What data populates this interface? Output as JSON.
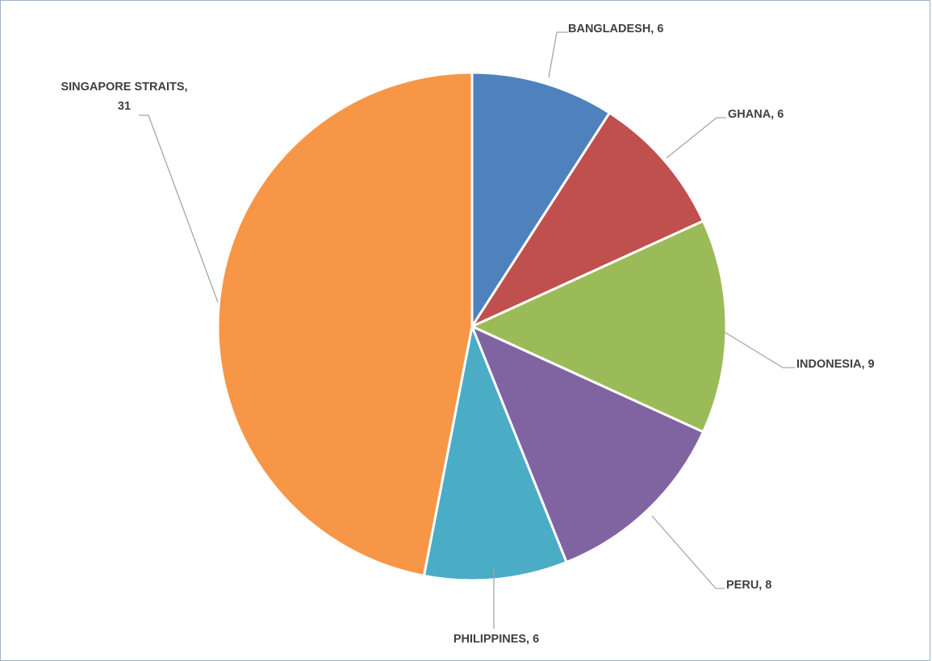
{
  "chart_data": {
    "type": "pie",
    "start_angle_deg": 0,
    "direction": "clockwise",
    "slices": [
      {
        "label": "BANGLADESH",
        "value": 6,
        "label_text": "BANGLADESH, 6",
        "color": "#4f81bd"
      },
      {
        "label": "GHANA",
        "value": 6,
        "label_text": "GHANA, 6",
        "color": "#c0504d"
      },
      {
        "label": "INDONESIA",
        "value": 9,
        "label_text": "INDONESIA, 9",
        "color": "#9bbb59"
      },
      {
        "label": "PERU",
        "value": 8,
        "label_text": "PERU, 8",
        "color": "#8064a2"
      },
      {
        "label": "PHILIPPINES",
        "value": 6,
        "label_text": "PHILIPPINES, 6",
        "color": "#4bacc6"
      },
      {
        "label": "SINGAPORE STRAITS",
        "value": 31,
        "label_text": [
          "SINGAPORE STRAITS,",
          "31"
        ],
        "color": "#f79646"
      }
    ],
    "legend": "none",
    "data_labels": "category-and-value outside with leader lines"
  }
}
